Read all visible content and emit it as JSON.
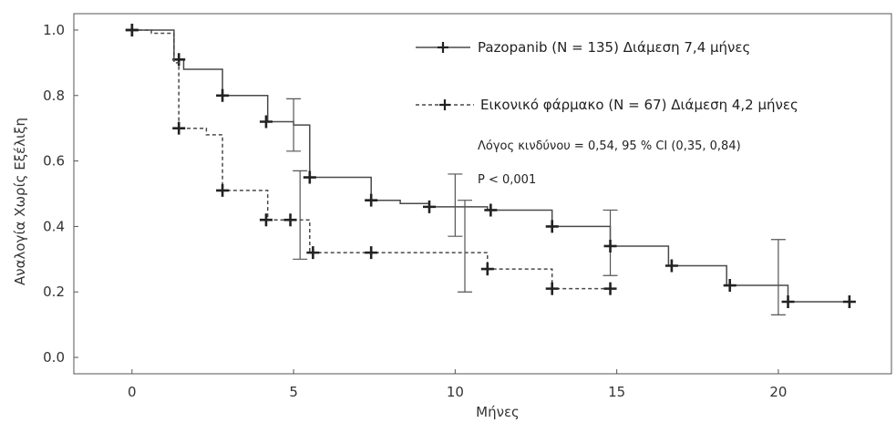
{
  "chart_data": {
    "type": "line",
    "xlabel": "Μήνες",
    "ylabel": "Αναλογία Χωρίς Εξέλιξη",
    "xlim": [
      -1.8,
      23.5
    ],
    "ylim": [
      -0.05,
      1.05
    ],
    "x_ticks": [
      0,
      5,
      10,
      15,
      20
    ],
    "y_ticks": [
      0.0,
      0.2,
      0.4,
      0.6,
      0.8,
      1.0
    ],
    "x_tick_labels": [
      "0",
      "5",
      "10",
      "15",
      "20"
    ],
    "y_tick_labels": [
      "0.0",
      "0.2",
      "0.4",
      "0.6",
      "0.8",
      "1.0"
    ],
    "grid": false,
    "legend_position": "top-right",
    "series": [
      {
        "name": "Pazopanib (N = 135)  Διάμεση 7,4  μήνες",
        "line_style": "solid",
        "color": "#4a4a4a",
        "step_points": [
          [
            0,
            1.0
          ],
          [
            1.3,
            1.0
          ],
          [
            1.3,
            0.91
          ],
          [
            1.6,
            0.91
          ],
          [
            1.6,
            0.88
          ],
          [
            2.8,
            0.88
          ],
          [
            2.8,
            0.8
          ],
          [
            4.2,
            0.8
          ],
          [
            4.2,
            0.72
          ],
          [
            5.0,
            0.72
          ],
          [
            5.0,
            0.71
          ],
          [
            5.5,
            0.71
          ],
          [
            5.5,
            0.55
          ],
          [
            7.4,
            0.55
          ],
          [
            7.4,
            0.48
          ],
          [
            8.3,
            0.48
          ],
          [
            8.3,
            0.47
          ],
          [
            9.2,
            0.47
          ],
          [
            9.2,
            0.46
          ],
          [
            11.0,
            0.46
          ],
          [
            11.0,
            0.45
          ],
          [
            13.0,
            0.45
          ],
          [
            13.0,
            0.4
          ],
          [
            14.8,
            0.4
          ],
          [
            14.8,
            0.34
          ],
          [
            16.6,
            0.34
          ],
          [
            16.6,
            0.28
          ],
          [
            18.4,
            0.28
          ],
          [
            18.4,
            0.22
          ],
          [
            20.3,
            0.22
          ],
          [
            20.3,
            0.17
          ],
          [
            22.2,
            0.17
          ]
        ],
        "censor_marks": [
          [
            0,
            1.0
          ],
          [
            1.45,
            0.91
          ],
          [
            2.8,
            0.8
          ],
          [
            4.15,
            0.72
          ],
          [
            5.5,
            0.55
          ],
          [
            7.4,
            0.48
          ],
          [
            9.2,
            0.46
          ],
          [
            11.1,
            0.45
          ],
          [
            13.0,
            0.4
          ],
          [
            14.8,
            0.34
          ],
          [
            16.7,
            0.28
          ],
          [
            18.5,
            0.22
          ],
          [
            20.3,
            0.17
          ],
          [
            22.2,
            0.17
          ]
        ],
        "error_bars": [
          [
            5.0,
            0.63,
            0.79
          ],
          [
            10.0,
            0.37,
            0.56
          ],
          [
            14.8,
            0.25,
            0.45
          ],
          [
            20.0,
            0.13,
            0.36
          ]
        ]
      },
      {
        "name": "Εικονικό φάρμακο (N = 67)  Διάμεση 4,2 μήνες",
        "line_style": "dashed",
        "color": "#4a4a4a",
        "step_points": [
          [
            0,
            1.0
          ],
          [
            0.6,
            1.0
          ],
          [
            0.6,
            0.99
          ],
          [
            1.3,
            0.99
          ],
          [
            1.3,
            0.9
          ],
          [
            1.45,
            0.9
          ],
          [
            1.45,
            0.7
          ],
          [
            2.3,
            0.7
          ],
          [
            2.3,
            0.68
          ],
          [
            2.8,
            0.68
          ],
          [
            2.8,
            0.51
          ],
          [
            4.2,
            0.51
          ],
          [
            4.2,
            0.42
          ],
          [
            5.5,
            0.42
          ],
          [
            5.5,
            0.32
          ],
          [
            11.0,
            0.32
          ],
          [
            11.0,
            0.27
          ],
          [
            13.0,
            0.27
          ],
          [
            13.0,
            0.21
          ],
          [
            14.8,
            0.21
          ]
        ],
        "censor_marks": [
          [
            0,
            1.0
          ],
          [
            1.45,
            0.7
          ],
          [
            2.8,
            0.51
          ],
          [
            4.15,
            0.42
          ],
          [
            4.9,
            0.42
          ],
          [
            5.6,
            0.32
          ],
          [
            7.4,
            0.32
          ],
          [
            11.0,
            0.27
          ],
          [
            13.0,
            0.21
          ],
          [
            14.8,
            0.21
          ]
        ],
        "error_bars": [
          [
            5.2,
            0.3,
            0.57
          ],
          [
            10.3,
            0.2,
            0.48
          ]
        ]
      }
    ],
    "annotations": [
      "Λόγος κινδύνου  = 0,54, 95 % CI (0,35, 0,84)",
      "P < 0,001"
    ]
  }
}
